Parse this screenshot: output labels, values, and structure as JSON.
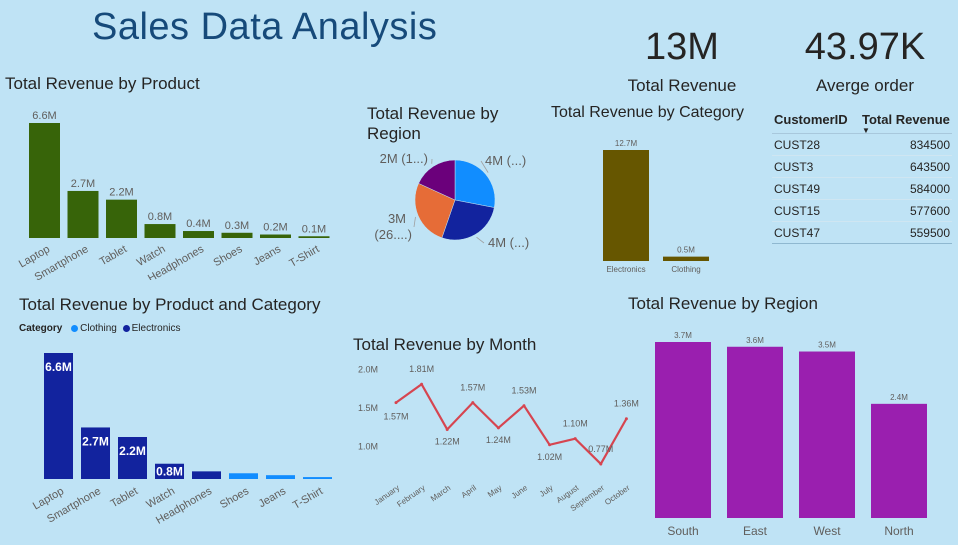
{
  "title": "Sales Data Analysis",
  "kpis": {
    "total_revenue": {
      "value": "13M",
      "label": "Total Revenue"
    },
    "average_order": {
      "value": "43.97K",
      "label": "Averge order"
    }
  },
  "colors": {
    "product_bar": "#376409",
    "category_bar": "#665600",
    "region_bar": "#9a1faf",
    "clothing": "#118dff",
    "electronics": "#12239e",
    "line": "#d64550",
    "pie": [
      "#118dff",
      "#12239e",
      "#e66c37",
      "#6b007b"
    ]
  },
  "customers_table": {
    "headers": [
      "CustomerID",
      "Total Revenue"
    ],
    "rows": [
      [
        "CUST28",
        "834500"
      ],
      [
        "CUST3",
        "643500"
      ],
      [
        "CUST49",
        "584000"
      ],
      [
        "CUST15",
        "577600"
      ],
      [
        "CUST47",
        "559500"
      ]
    ]
  },
  "chart_data": [
    {
      "id": "product",
      "type": "bar",
      "title": "Total Revenue by Product",
      "categories": [
        "Laptop",
        "Smartphone",
        "Tablet",
        "Watch",
        "Headphones",
        "Shoes",
        "Jeans",
        "T-Shirt"
      ],
      "values": [
        6.6,
        2.7,
        2.2,
        0.8,
        0.4,
        0.3,
        0.2,
        0.1
      ],
      "labels": [
        "6.6M",
        "2.7M",
        "2.2M",
        "0.8M",
        "0.4M",
        "0.3M",
        "0.2M",
        "0.1M"
      ],
      "unit": "M",
      "ylim": [
        0,
        6.6
      ]
    },
    {
      "id": "region_pie",
      "type": "pie",
      "title": "Total Revenue by Region",
      "slices": [
        {
          "value": 3.7,
          "label": "4M (...)"
        },
        {
          "value": 3.6,
          "label": "4M (...)"
        },
        {
          "value": 3.5,
          "label": "3M (26....)"
        },
        {
          "value": 2.4,
          "label": "2M (1...)"
        }
      ]
    },
    {
      "id": "category",
      "type": "bar",
      "title": "Total Revenue by Category",
      "categories": [
        "Electronics",
        "Clothing"
      ],
      "values": [
        12.7,
        0.5
      ],
      "labels": [
        "12.7M",
        "0.5M"
      ],
      "ylim": [
        0,
        12.7
      ]
    },
    {
      "id": "product_category",
      "type": "bar",
      "title": "Total Revenue by Product and Category",
      "legend_title": "Category",
      "legend": [
        "Clothing",
        "Electronics"
      ],
      "categories": [
        "Laptop",
        "Smartphone",
        "Tablet",
        "Watch",
        "Headphones",
        "Shoes",
        "Jeans",
        "T-Shirt"
      ],
      "values": [
        6.6,
        2.7,
        2.2,
        0.8,
        0.4,
        0.3,
        0.2,
        0.1
      ],
      "category_of": [
        "Electronics",
        "Electronics",
        "Electronics",
        "Electronics",
        "Electronics",
        "Clothing",
        "Clothing",
        "Clothing"
      ],
      "labels": [
        "6.6M",
        "2.7M",
        "2.2M",
        "0.8M",
        "",
        "",
        "",
        ""
      ],
      "ylim": [
        0,
        6.6
      ]
    },
    {
      "id": "month",
      "type": "line",
      "title": "Total Revenue by Month",
      "x": [
        "January",
        "February",
        "March",
        "April",
        "May",
        "June",
        "July",
        "August",
        "September",
        "October"
      ],
      "values": [
        1.57,
        1.81,
        1.22,
        1.57,
        1.24,
        1.53,
        1.02,
        1.1,
        0.77,
        1.36
      ],
      "labels": [
        "1.57M",
        "1.81M",
        "1.22M",
        "1.57M",
        "1.24M",
        "1.53M",
        "1.02M",
        "1.10M",
        "0.77M",
        "1.36M"
      ],
      "yticks": [
        {
          "v": 2.0,
          "label": "2.0M"
        },
        {
          "v": 1.5,
          "label": "1.5M"
        },
        {
          "v": 1.0,
          "label": "1.0M"
        }
      ],
      "ylim": [
        0.6,
        2.1
      ]
    },
    {
      "id": "region_bar",
      "type": "bar",
      "title": "Total Revenue by Region",
      "categories": [
        "South",
        "East",
        "West",
        "North"
      ],
      "values": [
        3.7,
        3.6,
        3.5,
        2.4
      ],
      "labels": [
        "3.7M",
        "3.6M",
        "3.5M",
        "2.4M"
      ],
      "ylim": [
        0,
        3.7
      ]
    }
  ]
}
